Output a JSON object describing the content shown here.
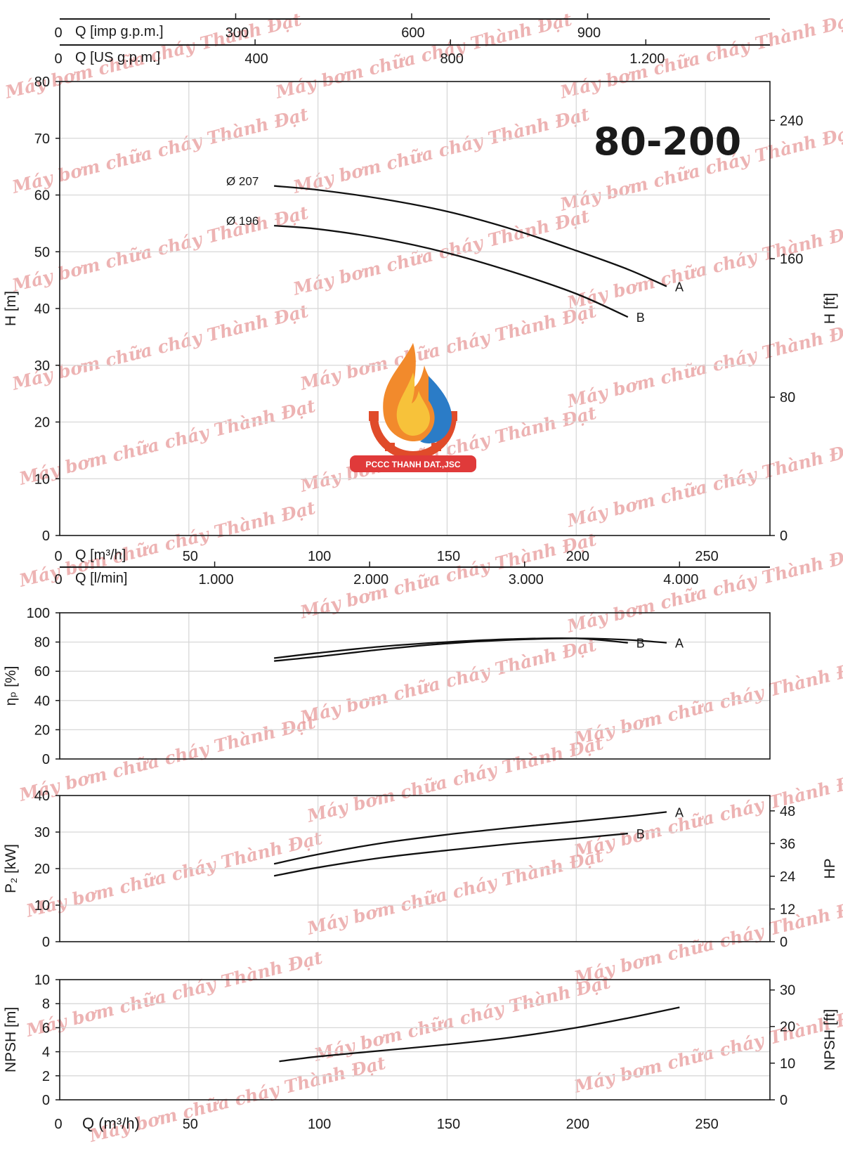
{
  "model": "80-200",
  "logo": {
    "text": "PCCC THANH DAT.,JSC"
  },
  "watermark": "Máy bơm chữa cháy Thành Đạt",
  "top_axes": {
    "imp": {
      "label": "Q [imp g.p.m.]",
      "zero": "0",
      "ticks": [
        {
          "v": 300,
          "t": "300"
        },
        {
          "v": 600,
          "t": "600"
        },
        {
          "v": 900,
          "t": "900"
        }
      ]
    },
    "us": {
      "label": "Q [US g.p.m.]",
      "zero": "0",
      "ticks": [
        {
          "v": 400,
          "t": "400"
        },
        {
          "v": 800,
          "t": "800"
        },
        {
          "v": 1200,
          "t": "1.200"
        }
      ]
    }
  },
  "mid_axes": {
    "m3h": {
      "label": "Q [m³/h]",
      "zero": "0",
      "ticks": [
        {
          "v": 50,
          "t": "50"
        },
        {
          "v": 100,
          "t": "100"
        },
        {
          "v": 150,
          "t": "150"
        },
        {
          "v": 200,
          "t": "200"
        },
        {
          "v": 250,
          "t": "250"
        }
      ]
    },
    "lmin": {
      "label": "Q [l/min]",
      "zero": "0",
      "ticks": [
        {
          "v": 1000,
          "t": "1.000"
        },
        {
          "v": 2000,
          "t": "2.000"
        },
        {
          "v": 3000,
          "t": "3.000"
        },
        {
          "v": 4000,
          "t": "4.000"
        }
      ]
    }
  },
  "bottom_axis": {
    "label": "Q (m³/h)",
    "zero": "0",
    "ticks": [
      {
        "v": 50,
        "t": "50"
      },
      {
        "v": 100,
        "t": "100"
      },
      {
        "v": 150,
        "t": "150"
      },
      {
        "v": 200,
        "t": "200"
      },
      {
        "v": 250,
        "t": "250"
      }
    ]
  },
  "chart_data": [
    {
      "type": "line",
      "ylabel": "H [m]",
      "y2label": "H [ft]",
      "xlim": [
        0,
        275
      ],
      "ylim": [
        0,
        80
      ],
      "yticks": [
        0,
        10,
        20,
        30,
        40,
        50,
        60,
        70,
        80
      ],
      "y2ticks": [
        {
          "v": 0,
          "t": "0"
        },
        {
          "v": 24.38,
          "t": "80"
        },
        {
          "v": 48.77,
          "t": "160"
        },
        {
          "v": 73.15,
          "t": "240"
        }
      ],
      "grid": true,
      "series": [
        {
          "name": "A",
          "diameter": "Ø 207",
          "x": [
            83,
            100,
            125,
            150,
            175,
            200,
            220,
            235
          ],
          "y": [
            61.6,
            60.9,
            59.3,
            57.1,
            54.0,
            50.2,
            46.9,
            43.9
          ]
        },
        {
          "name": "B",
          "diameter": "Ø 196",
          "x": [
            83,
            100,
            125,
            150,
            175,
            200,
            220
          ],
          "y": [
            54.6,
            54.0,
            52.3,
            49.8,
            46.5,
            42.6,
            38.5
          ]
        }
      ]
    },
    {
      "type": "line",
      "ylabel": "ηₚ [%]",
      "xlim": [
        0,
        275
      ],
      "ylim": [
        0,
        100
      ],
      "yticks": [
        0,
        20,
        40,
        60,
        80,
        100
      ],
      "grid": true,
      "series": [
        {
          "name": "A",
          "x": [
            83,
            100,
            125,
            150,
            175,
            200,
            220,
            235
          ],
          "y": [
            67,
            70,
            75,
            79,
            81.5,
            82.5,
            81.5,
            79.5
          ]
        },
        {
          "name": "B",
          "x": [
            83,
            100,
            125,
            150,
            175,
            200,
            220
          ],
          "y": [
            69,
            72.5,
            77,
            80,
            82,
            82.5,
            79.5
          ]
        }
      ]
    },
    {
      "type": "line",
      "ylabel": "P₂ [kW]",
      "y2label": "HP",
      "xlim": [
        0,
        275
      ],
      "ylim": [
        0,
        40
      ],
      "yticks": [
        0,
        10,
        20,
        30,
        40
      ],
      "y2ticks": [
        {
          "v": 0,
          "t": "0"
        },
        {
          "v": 8.95,
          "t": "12"
        },
        {
          "v": 17.9,
          "t": "24"
        },
        {
          "v": 26.85,
          "t": "36"
        },
        {
          "v": 35.8,
          "t": "48"
        }
      ],
      "grid": true,
      "series": [
        {
          "name": "A",
          "x": [
            83,
            100,
            125,
            150,
            175,
            200,
            220,
            235
          ],
          "y": [
            21.3,
            23.9,
            27.0,
            29.3,
            31.2,
            32.9,
            34.3,
            35.5
          ]
        },
        {
          "name": "B",
          "x": [
            83,
            100,
            125,
            150,
            175,
            200,
            220
          ],
          "y": [
            18.0,
            20.3,
            23.0,
            25.0,
            26.8,
            28.3,
            29.6
          ]
        }
      ]
    },
    {
      "type": "line",
      "ylabel": "NPSH [m]",
      "y2label": "NPSH [ft]",
      "xlim": [
        0,
        275
      ],
      "ylim": [
        0,
        10
      ],
      "yticks": [
        0,
        2,
        4,
        6,
        8,
        10
      ],
      "y2ticks": [
        {
          "v": 0,
          "t": "0"
        },
        {
          "v": 3.05,
          "t": "10"
        },
        {
          "v": 6.1,
          "t": "20"
        },
        {
          "v": 9.14,
          "t": "30"
        }
      ],
      "grid": true,
      "series": [
        {
          "name": "",
          "x": [
            85,
            100,
            125,
            150,
            175,
            200,
            220,
            240
          ],
          "y": [
            3.2,
            3.6,
            4.1,
            4.6,
            5.2,
            6.0,
            6.8,
            7.7
          ]
        }
      ]
    }
  ]
}
